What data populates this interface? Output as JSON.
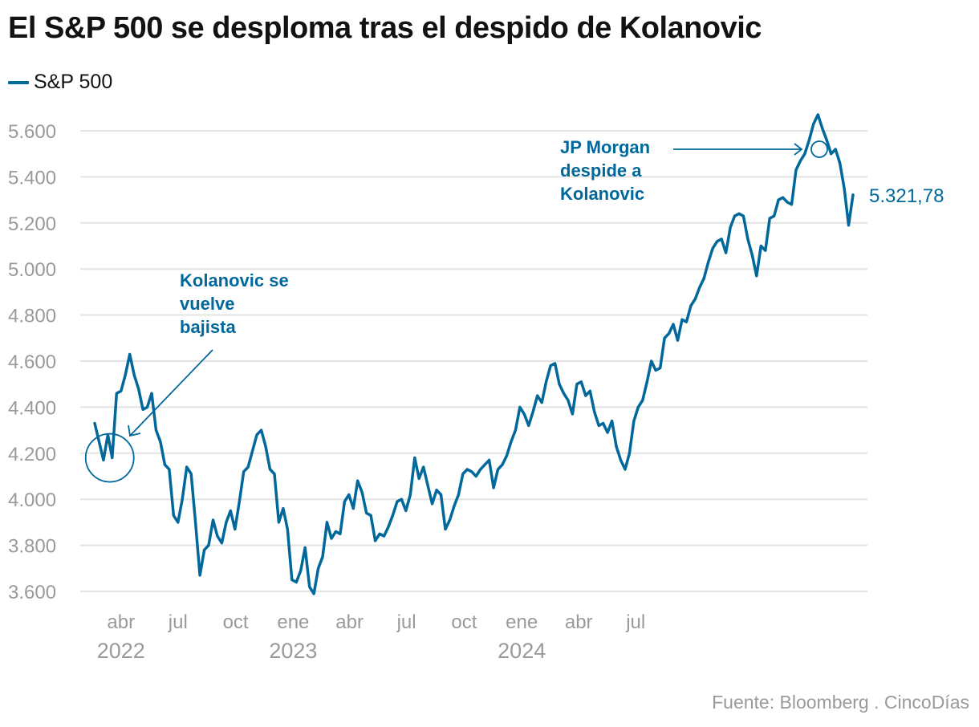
{
  "chart_data": {
    "type": "line",
    "title": "El S&P 500 se desploma tras el despido de Kolanovic",
    "legend": [
      {
        "name": "S&P 500",
        "color": "#00689b"
      }
    ],
    "legend_position": "top-left",
    "xlabel": "",
    "ylabel": "",
    "ylim": [
      3600,
      5600
    ],
    "yticks": [
      {
        "value": 5600,
        "label": "5.600"
      },
      {
        "value": 5400,
        "label": "5.400"
      },
      {
        "value": 5200,
        "label": "5.200"
      },
      {
        "value": 5000,
        "label": "5.000"
      },
      {
        "value": 4800,
        "label": "4.800"
      },
      {
        "value": 4600,
        "label": "4.600"
      },
      {
        "value": 4400,
        "label": "4.400"
      },
      {
        "value": 4200,
        "label": "4.200"
      },
      {
        "value": 4000,
        "label": "4.000"
      },
      {
        "value": 3800,
        "label": "3.800"
      },
      {
        "value": 3600,
        "label": "3.600"
      }
    ],
    "xticks": [
      {
        "month": "abr",
        "year": "2022",
        "date": "2022-04-01"
      },
      {
        "month": "jul",
        "year": "",
        "date": "2022-07-01"
      },
      {
        "month": "oct",
        "year": "",
        "date": "2022-10-01"
      },
      {
        "month": "ene",
        "year": "2023",
        "date": "2023-01-01"
      },
      {
        "month": "abr",
        "year": "",
        "date": "2023-04-01"
      },
      {
        "month": "jul",
        "year": "",
        "date": "2023-07-01"
      },
      {
        "month": "oct",
        "year": "",
        "date": "2023-10-01"
      },
      {
        "month": "ene",
        "year": "2024",
        "date": "2024-01-01"
      },
      {
        "month": "abr",
        "year": "",
        "date": "2024-04-01"
      },
      {
        "month": "jul",
        "year": "",
        "date": "2024-07-01"
      }
    ],
    "grid": true,
    "series": [
      {
        "name": "S&P 500",
        "color": "#00689b",
        "start_date": "2022-02-18",
        "interval": "weekly",
        "values": [
          4330,
          4250,
          4170,
          4280,
          4180,
          4460,
          4470,
          4540,
          4630,
          4540,
          4480,
          4390,
          4400,
          4460,
          4300,
          4250,
          4150,
          4130,
          3930,
          3900,
          4000,
          4140,
          4110,
          3900,
          3670,
          3780,
          3800,
          3910,
          3840,
          3810,
          3900,
          3950,
          3870,
          3990,
          4120,
          4140,
          4210,
          4280,
          4300,
          4230,
          4130,
          4110,
          3900,
          3960,
          3870,
          3650,
          3640,
          3690,
          3790,
          3620,
          3590,
          3700,
          3750,
          3900,
          3830,
          3860,
          3850,
          3990,
          4020,
          3960,
          4080,
          4030,
          3940,
          3930,
          3820,
          3850,
          3840,
          3880,
          3930,
          3990,
          4000,
          3950,
          4020,
          4180,
          4090,
          4140,
          4060,
          3980,
          4040,
          4020,
          3870,
          3910,
          3970,
          4020,
          4110,
          4130,
          4120,
          4100,
          4130,
          4150,
          4170,
          4050,
          4130,
          4150,
          4190,
          4250,
          4300,
          4400,
          4370,
          4320,
          4380,
          4450,
          4420,
          4510,
          4580,
          4590,
          4500,
          4460,
          4430,
          4370,
          4500,
          4510,
          4450,
          4470,
          4380,
          4320,
          4330,
          4290,
          4340,
          4230,
          4170,
          4130,
          4200,
          4340,
          4400,
          4430,
          4510,
          4600,
          4560,
          4570,
          4700,
          4720,
          4760,
          4690,
          4780,
          4770,
          4840,
          4870,
          4920,
          4960,
          5030,
          5090,
          5120,
          5130,
          5070,
          5180,
          5230,
          5240,
          5230,
          5130,
          5060,
          4970,
          5100,
          5080,
          5220,
          5230,
          5300,
          5310,
          5290,
          5280,
          5430,
          5470,
          5500,
          5560,
          5630,
          5670,
          5610,
          5560,
          5500,
          5520,
          5460,
          5350,
          5190,
          5321.78
        ]
      }
    ],
    "end_label": {
      "value": 5321.78,
      "text": "5.321,78"
    },
    "annotations": [
      {
        "text_lines": [
          "Kolanovic se",
          "vuelve",
          "bajista"
        ],
        "target_date": "2022-03-14",
        "target_value": 4180,
        "marker": "circle"
      },
      {
        "text_lines": [
          "JP Morgan",
          "despide a",
          "Kolanovic"
        ],
        "target_date": "2024-07-01",
        "target_value": 5520,
        "marker": "circle"
      }
    ]
  },
  "footer": {
    "source": "Fuente: Bloomberg . CincoDías"
  }
}
